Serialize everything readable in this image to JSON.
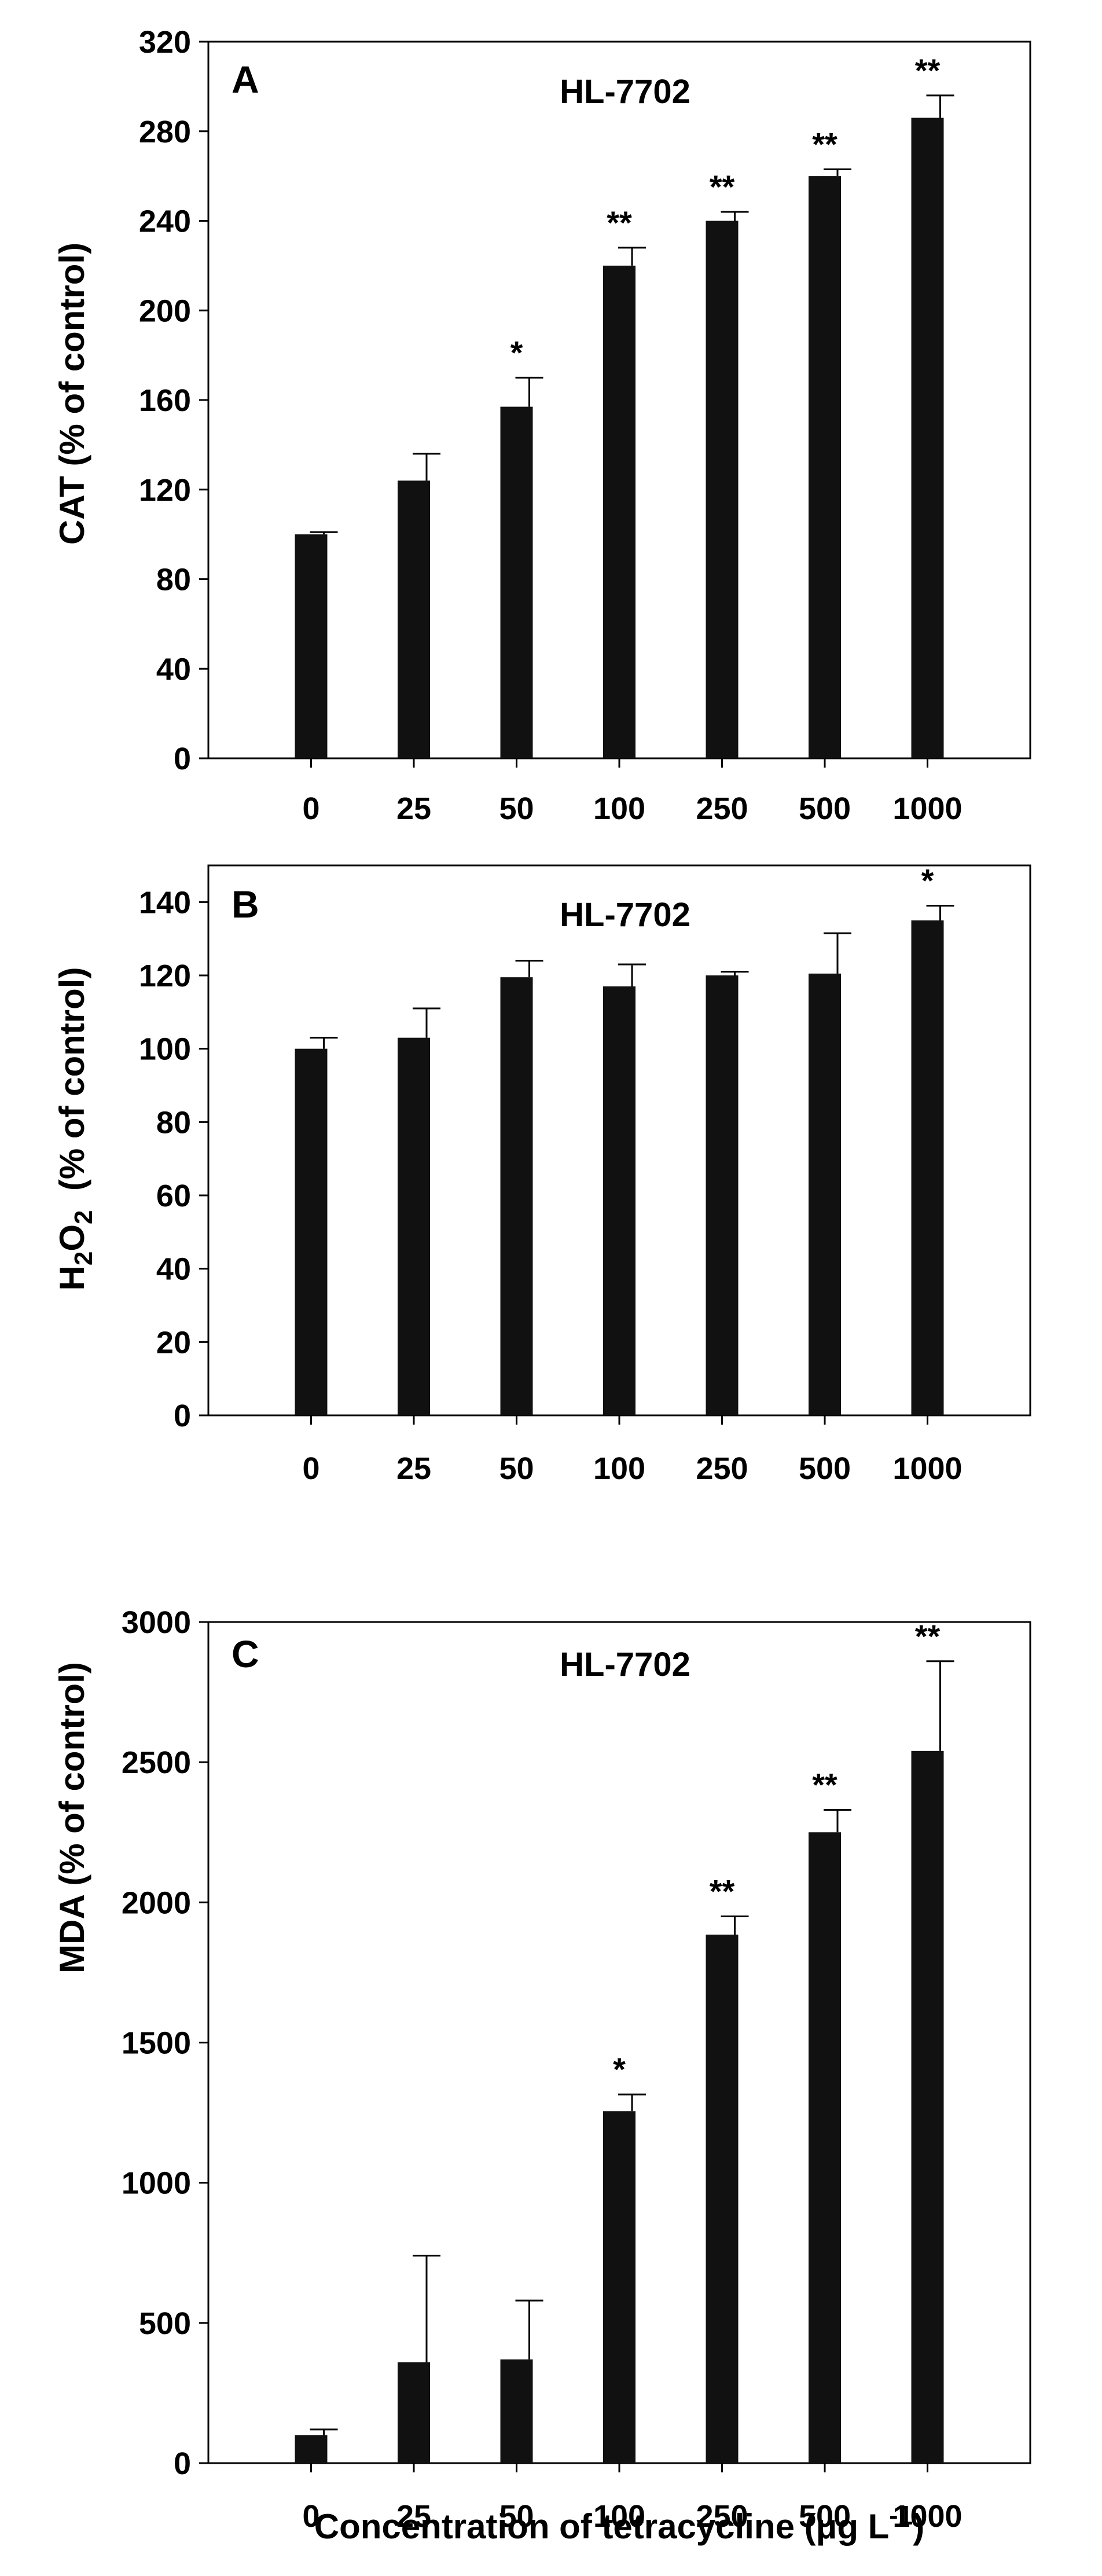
{
  "chart_data": [
    {
      "type": "bar",
      "panel": "A",
      "title": "HL-7702",
      "ylabel": "CAT  (% of control)",
      "categories": [
        "0",
        "25",
        "50",
        "100",
        "250",
        "500",
        "1000"
      ],
      "values": [
        100,
        124,
        157,
        220,
        240,
        260,
        286
      ],
      "errors": [
        1,
        12,
        13,
        8,
        4,
        3,
        10
      ],
      "significance": [
        "",
        "",
        "*",
        "**",
        "**",
        "**",
        "**"
      ],
      "ylim": [
        0,
        320
      ],
      "yticks": [
        "0",
        "40",
        "80",
        "120",
        "160",
        "200",
        "240",
        "280",
        "320"
      ],
      "grid": false,
      "bar_color": "#111111"
    },
    {
      "type": "bar",
      "panel": "B",
      "title": "HL-7702",
      "ylabel": "H2O2  (% of control)",
      "ylabel_parts": {
        "a": "H",
        "b": "2",
        "c": "O",
        "d": "2",
        "e": "  (% of control)"
      },
      "categories": [
        "0",
        "25",
        "50",
        "100",
        "250",
        "500",
        "1000"
      ],
      "values": [
        100,
        103,
        119.5,
        117,
        120,
        120.5,
        135
      ],
      "errors": [
        3,
        8,
        4.5,
        6,
        1,
        11,
        4
      ],
      "significance": [
        "",
        "",
        "",
        "",
        "",
        "",
        "*"
      ],
      "ylim": [
        0,
        150
      ],
      "yticks": [
        "0",
        "20",
        "40",
        "60",
        "80",
        "100",
        "120",
        "140"
      ],
      "grid": false,
      "bar_color": "#111111"
    },
    {
      "type": "bar",
      "panel": "C",
      "title": "HL-7702",
      "ylabel": "MDA (% of control)",
      "categories": [
        "0",
        "25",
        "50",
        "100",
        "250",
        "500",
        "1000"
      ],
      "values": [
        100,
        360,
        370,
        1255,
        1885,
        2250,
        2540
      ],
      "errors": [
        20,
        380,
        210,
        60,
        65,
        80,
        320
      ],
      "significance": [
        "",
        "",
        "",
        "*",
        "**",
        "**",
        "**"
      ],
      "ylim": [
        0,
        3000
      ],
      "yticks": [
        "0",
        "500",
        "1000",
        "1500",
        "2000",
        "2500",
        "3000"
      ],
      "grid": false,
      "bar_color": "#111111"
    }
  ],
  "xlabel": "Concentration of tetracycline (μg L-1)",
  "xlabel_parts": {
    "main": "Concentration of tetracycline (μg L",
    "sup": "-1",
    "close": ")"
  }
}
